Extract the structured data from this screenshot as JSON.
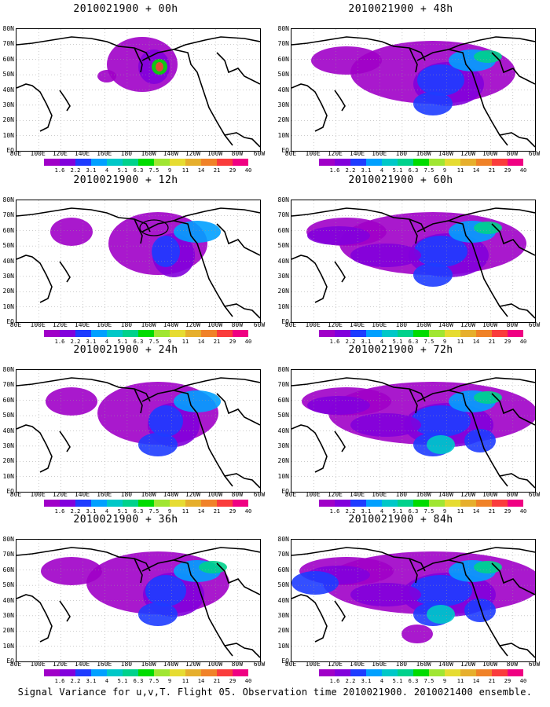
{
  "panels": [
    {
      "title": "2010021900 + 00h",
      "level": 0
    },
    {
      "title": "2010021900 + 48h",
      "level": 4
    },
    {
      "title": "2010021900 + 12h",
      "level": 1
    },
    {
      "title": "2010021900 + 60h",
      "level": 5
    },
    {
      "title": "2010021900 + 24h",
      "level": 2
    },
    {
      "title": "2010021900 + 72h",
      "level": 6
    },
    {
      "title": "2010021900 + 36h",
      "level": 3
    },
    {
      "title": "2010021900 + 84h",
      "level": 7
    }
  ],
  "lat_labels": [
    "80N",
    "70N",
    "60N",
    "50N",
    "40N",
    "30N",
    "20N",
    "10N",
    "EQ"
  ],
  "lon_labels": [
    "80E",
    "100E",
    "120E",
    "140E",
    "160E",
    "180",
    "160W",
    "140W",
    "120W",
    "100W",
    "80W",
    "60W"
  ],
  "colorbar": {
    "colors": [
      "#a000c8",
      "#8200dc",
      "#1e3cff",
      "#00a0ff",
      "#00c8c8",
      "#00d28c",
      "#00dc00",
      "#a0e632",
      "#e6dc32",
      "#e6af2d",
      "#f08228",
      "#fa3c3c",
      "#f00082"
    ],
    "labels": [
      "1.6",
      "2.2",
      "3.1",
      "4",
      "5.1",
      "6.3",
      "7.5",
      "9",
      "11",
      "14",
      "21",
      "29",
      "40"
    ]
  },
  "footer": "Signal Variance for u,v,T. Flight 05. Observation time 2010021900. 2010021400 ensemble."
}
